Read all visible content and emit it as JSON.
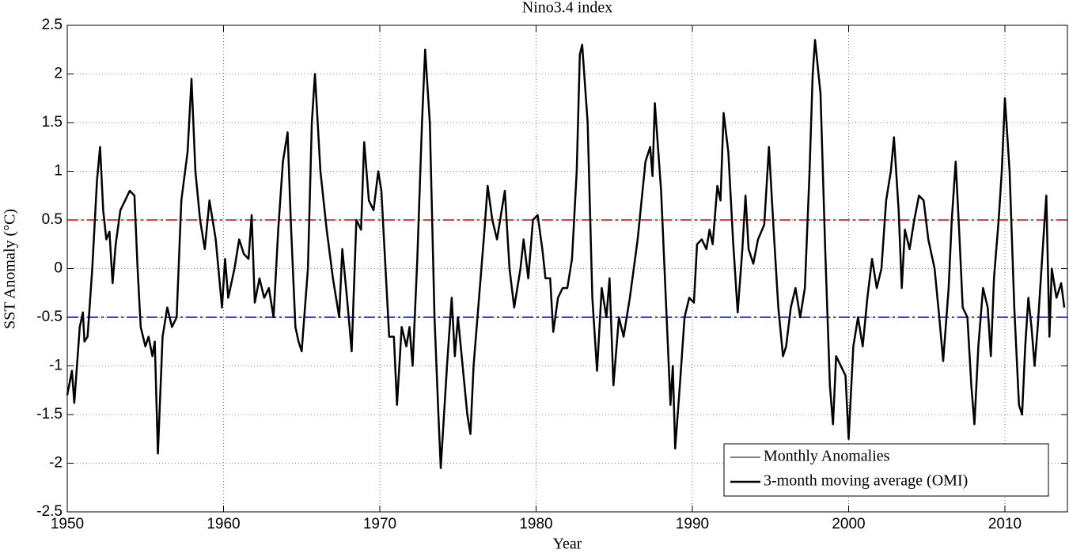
{
  "chart_data": {
    "type": "line",
    "title": "Nino3.4 index",
    "x_label": "Year",
    "y_label": "SST Anomaly (°C)",
    "xlim": [
      1950,
      2014
    ],
    "ylim": [
      -2.5,
      2.5
    ],
    "xticks": [
      1950,
      1960,
      1970,
      1980,
      1990,
      2000,
      2010
    ],
    "yticks": [
      -2.5,
      -2,
      -1.5,
      -1,
      -0.5,
      0,
      0.5,
      1,
      1.5,
      2,
      2.5
    ],
    "grid": true,
    "legend": "lower right",
    "reference_lines": [
      {
        "y": 0.5,
        "color": "#e00000"
      },
      {
        "y": -0.5,
        "color": "#0000d0"
      }
    ],
    "x": [
      1950.0,
      1950.3,
      1950.45,
      1950.8,
      1951.0,
      1951.1,
      1951.3,
      1951.6,
      1951.9,
      1952.1,
      1952.3,
      1952.5,
      1952.7,
      1952.9,
      1953.1,
      1953.4,
      1953.7,
      1954.0,
      1954.3,
      1954.5,
      1954.7,
      1955.0,
      1955.2,
      1955.45,
      1955.6,
      1955.8,
      1956.1,
      1956.4,
      1956.7,
      1957.0,
      1957.3,
      1957.7,
      1957.95,
      1958.2,
      1958.5,
      1958.8,
      1959.1,
      1959.5,
      1959.9,
      1960.1,
      1960.3,
      1960.7,
      1961.0,
      1961.3,
      1961.6,
      1961.8,
      1962.0,
      1962.3,
      1962.6,
      1962.9,
      1963.2,
      1963.5,
      1963.8,
      1964.1,
      1964.3,
      1964.6,
      1964.8,
      1965.0,
      1965.4,
      1965.65,
      1965.85,
      1966.2,
      1966.6,
      1967.0,
      1967.4,
      1967.6,
      1967.9,
      1968.2,
      1968.5,
      1968.8,
      1969.0,
      1969.3,
      1969.6,
      1969.9,
      1970.1,
      1970.3,
      1970.6,
      1970.9,
      1971.1,
      1971.4,
      1971.7,
      1971.9,
      1972.1,
      1972.4,
      1972.7,
      1972.9,
      1973.2,
      1973.5,
      1973.75,
      1973.9,
      1974.3,
      1974.6,
      1974.8,
      1975.0,
      1975.3,
      1975.6,
      1975.8,
      1976.0,
      1976.3,
      1976.7,
      1976.9,
      1977.2,
      1977.5,
      1977.8,
      1978.0,
      1978.3,
      1978.6,
      1979.0,
      1979.2,
      1979.5,
      1979.8,
      1980.1,
      1980.4,
      1980.6,
      1980.9,
      1981.1,
      1981.4,
      1981.7,
      1982.0,
      1982.3,
      1982.6,
      1982.8,
      1982.95,
      1983.3,
      1983.6,
      1983.9,
      1984.2,
      1984.5,
      1984.7,
      1984.95,
      1985.3,
      1985.6,
      1986.0,
      1986.5,
      1987.0,
      1987.3,
      1987.45,
      1987.6,
      1988.0,
      1988.3,
      1988.6,
      1988.75,
      1988.9,
      1989.2,
      1989.5,
      1989.8,
      1990.1,
      1990.3,
      1990.6,
      1990.9,
      1991.1,
      1991.3,
      1991.6,
      1991.8,
      1992.0,
      1992.3,
      1992.6,
      1992.9,
      1993.2,
      1993.4,
      1993.6,
      1993.9,
      1994.2,
      1994.6,
      1994.9,
      1995.2,
      1995.5,
      1995.8,
      1996.0,
      1996.3,
      1996.6,
      1996.9,
      1997.2,
      1997.5,
      1997.7,
      1997.85,
      1998.2,
      1998.5,
      1998.8,
      1999.0,
      1999.2,
      1999.5,
      1999.8,
      2000.0,
      2000.3,
      2000.6,
      2000.9,
      2001.2,
      2001.5,
      2001.8,
      2002.1,
      2002.4,
      2002.7,
      2002.9,
      2003.2,
      2003.4,
      2003.6,
      2003.9,
      2004.2,
      2004.5,
      2004.8,
      2005.1,
      2005.5,
      2005.8,
      2006.05,
      2006.4,
      2006.6,
      2006.85,
      2007.1,
      2007.3,
      2007.6,
      2007.85,
      2008.05,
      2008.3,
      2008.6,
      2008.9,
      2009.1,
      2009.3,
      2009.6,
      2009.8,
      2010.0,
      2010.3,
      2010.6,
      2010.9,
      2011.1,
      2011.3,
      2011.5,
      2011.7,
      2011.9,
      2012.1,
      2012.5,
      2012.65,
      2012.85,
      2013.0,
      2013.3,
      2013.6,
      2013.8
    ],
    "series": [
      {
        "name": "Monthly Anomalies",
        "color": "#000000",
        "line_width": 1,
        "values": [
          -1.3,
          -1.05,
          -1.38,
          -0.6,
          -0.45,
          -0.75,
          -0.7,
          0.0,
          0.9,
          1.25,
          0.6,
          0.3,
          0.38,
          -0.15,
          0.25,
          0.6,
          0.7,
          0.8,
          0.75,
          0.0,
          -0.6,
          -0.8,
          -0.7,
          -0.9,
          -0.75,
          -1.9,
          -0.7,
          -0.4,
          -0.6,
          -0.5,
          0.7,
          1.2,
          1.95,
          1.0,
          0.5,
          0.2,
          0.7,
          0.3,
          -0.4,
          0.1,
          -0.3,
          0.0,
          0.3,
          0.15,
          0.1,
          0.55,
          -0.35,
          -0.1,
          -0.3,
          -0.2,
          -0.5,
          0.4,
          1.1,
          1.4,
          0.5,
          -0.6,
          -0.75,
          -0.85,
          0.0,
          1.5,
          2.0,
          1.0,
          0.4,
          -0.1,
          -0.5,
          0.2,
          -0.3,
          -0.85,
          0.5,
          0.4,
          1.3,
          0.7,
          0.6,
          1.0,
          0.8,
          0.2,
          -0.7,
          -0.7,
          -1.4,
          -0.6,
          -0.8,
          -0.6,
          -1.0,
          0.1,
          1.5,
          2.25,
          1.5,
          -0.5,
          -1.5,
          -2.05,
          -1.0,
          -0.3,
          -0.9,
          -0.5,
          -1.0,
          -1.5,
          -1.7,
          -1.0,
          -0.4,
          0.4,
          0.85,
          0.5,
          0.3,
          0.6,
          0.8,
          0.0,
          -0.4,
          0.0,
          0.3,
          -0.1,
          0.5,
          0.55,
          0.2,
          -0.1,
          -0.1,
          -0.65,
          -0.3,
          -0.2,
          -0.2,
          0.1,
          1.0,
          2.2,
          2.3,
          1.5,
          -0.3,
          -1.05,
          -0.2,
          -0.5,
          -0.1,
          -1.2,
          -0.5,
          -0.7,
          -0.3,
          0.3,
          1.1,
          1.25,
          0.95,
          1.7,
          0.8,
          -0.3,
          -1.4,
          -1.0,
          -1.85,
          -1.2,
          -0.5,
          -0.3,
          -0.35,
          0.25,
          0.3,
          0.2,
          0.4,
          0.25,
          0.85,
          0.7,
          1.6,
          1.2,
          0.3,
          -0.45,
          0.2,
          0.75,
          0.2,
          0.05,
          0.3,
          0.45,
          1.25,
          0.4,
          -0.4,
          -0.9,
          -0.8,
          -0.4,
          -0.2,
          -0.5,
          -0.2,
          1.0,
          2.0,
          2.35,
          1.8,
          0.2,
          -1.2,
          -1.6,
          -0.9,
          -1.0,
          -1.1,
          -1.75,
          -0.8,
          -0.5,
          -0.8,
          -0.3,
          0.1,
          -0.2,
          0.0,
          0.7,
          1.0,
          1.35,
          0.6,
          -0.2,
          0.4,
          0.2,
          0.5,
          0.75,
          0.7,
          0.3,
          0.0,
          -0.5,
          -0.95,
          -0.2,
          0.5,
          1.1,
          0.3,
          -0.4,
          -0.5,
          -1.2,
          -1.6,
          -0.8,
          -0.2,
          -0.4,
          -0.9,
          -0.1,
          0.5,
          1.0,
          1.75,
          1.0,
          -0.4,
          -1.4,
          -1.5,
          -0.8,
          -0.3,
          -0.6,
          -1.0,
          -0.6,
          0.4,
          0.75,
          -0.7,
          0.0,
          -0.3,
          -0.15,
          -0.4
        ]
      },
      {
        "name": "3-month moving average (OMI)",
        "color": "#000000",
        "line_width": 2.5,
        "values": [
          -1.3,
          -1.05,
          -1.38,
          -0.6,
          -0.45,
          -0.75,
          -0.7,
          0.0,
          0.9,
          1.25,
          0.6,
          0.3,
          0.38,
          -0.15,
          0.25,
          0.6,
          0.7,
          0.8,
          0.75,
          0.0,
          -0.6,
          -0.8,
          -0.7,
          -0.9,
          -0.75,
          -1.9,
          -0.7,
          -0.4,
          -0.6,
          -0.5,
          0.7,
          1.2,
          1.95,
          1.0,
          0.5,
          0.2,
          0.7,
          0.3,
          -0.4,
          0.1,
          -0.3,
          0.0,
          0.3,
          0.15,
          0.1,
          0.55,
          -0.35,
          -0.1,
          -0.3,
          -0.2,
          -0.5,
          0.4,
          1.1,
          1.4,
          0.5,
          -0.6,
          -0.75,
          -0.85,
          0.0,
          1.5,
          2.0,
          1.0,
          0.4,
          -0.1,
          -0.5,
          0.2,
          -0.3,
          -0.85,
          0.5,
          0.4,
          1.3,
          0.7,
          0.6,
          1.0,
          0.8,
          0.2,
          -0.7,
          -0.7,
          -1.4,
          -0.6,
          -0.8,
          -0.6,
          -1.0,
          0.1,
          1.5,
          2.25,
          1.5,
          -0.5,
          -1.5,
          -2.05,
          -1.0,
          -0.3,
          -0.9,
          -0.5,
          -1.0,
          -1.5,
          -1.7,
          -1.0,
          -0.4,
          0.4,
          0.85,
          0.5,
          0.3,
          0.6,
          0.8,
          0.0,
          -0.4,
          0.0,
          0.3,
          -0.1,
          0.5,
          0.55,
          0.2,
          -0.1,
          -0.1,
          -0.65,
          -0.3,
          -0.2,
          -0.2,
          0.1,
          1.0,
          2.2,
          2.3,
          1.5,
          -0.3,
          -1.05,
          -0.2,
          -0.5,
          -0.1,
          -1.2,
          -0.5,
          -0.7,
          -0.3,
          0.3,
          1.1,
          1.25,
          0.95,
          1.7,
          0.8,
          -0.3,
          -1.4,
          -1.0,
          -1.85,
          -1.2,
          -0.5,
          -0.3,
          -0.35,
          0.25,
          0.3,
          0.2,
          0.4,
          0.25,
          0.85,
          0.7,
          1.6,
          1.2,
          0.3,
          -0.45,
          0.2,
          0.75,
          0.2,
          0.05,
          0.3,
          0.45,
          1.25,
          0.4,
          -0.4,
          -0.9,
          -0.8,
          -0.4,
          -0.2,
          -0.5,
          -0.2,
          1.0,
          2.0,
          2.35,
          1.8,
          0.2,
          -1.2,
          -1.6,
          -0.9,
          -1.0,
          -1.1,
          -1.75,
          -0.8,
          -0.5,
          -0.8,
          -0.3,
          0.1,
          -0.2,
          0.0,
          0.7,
          1.0,
          1.35,
          0.6,
          -0.2,
          0.4,
          0.2,
          0.5,
          0.75,
          0.7,
          0.3,
          0.0,
          -0.5,
          -0.95,
          -0.2,
          0.5,
          1.1,
          0.3,
          -0.4,
          -0.5,
          -1.2,
          -1.6,
          -0.8,
          -0.2,
          -0.4,
          -0.9,
          -0.1,
          0.5,
          1.0,
          1.75,
          1.0,
          -0.4,
          -1.4,
          -1.5,
          -0.8,
          -0.3,
          -0.6,
          -1.0,
          -0.6,
          0.4,
          0.75,
          -0.7,
          0.0,
          -0.3,
          -0.15,
          -0.4
        ]
      }
    ]
  }
}
